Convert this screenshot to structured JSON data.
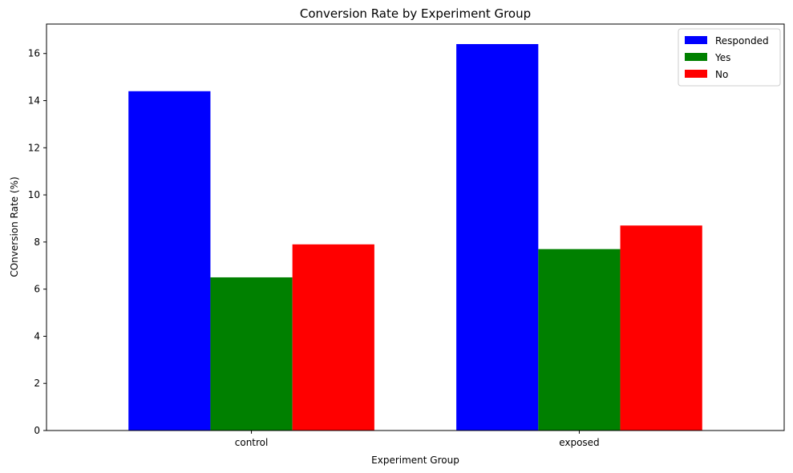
{
  "chart_data": {
    "type": "bar",
    "title": "Conversion Rate by Experiment Group",
    "xlabel": "Experiment Group",
    "ylabel": "COnversion Rate (%)",
    "categories": [
      "control",
      "exposed"
    ],
    "series": [
      {
        "name": "Responded",
        "values": [
          14.4,
          16.4
        ],
        "color": "#0000ff"
      },
      {
        "name": "Yes",
        "values": [
          6.5,
          7.7
        ],
        "color": "#008000"
      },
      {
        "name": "No",
        "values": [
          7.9,
          8.7
        ],
        "color": "#ff0000"
      }
    ],
    "ylim": [
      0,
      17.25
    ],
    "yticks": [
      0,
      2,
      4,
      6,
      8,
      10,
      12,
      14,
      16
    ],
    "grid": false,
    "legend_position": "top-right"
  }
}
